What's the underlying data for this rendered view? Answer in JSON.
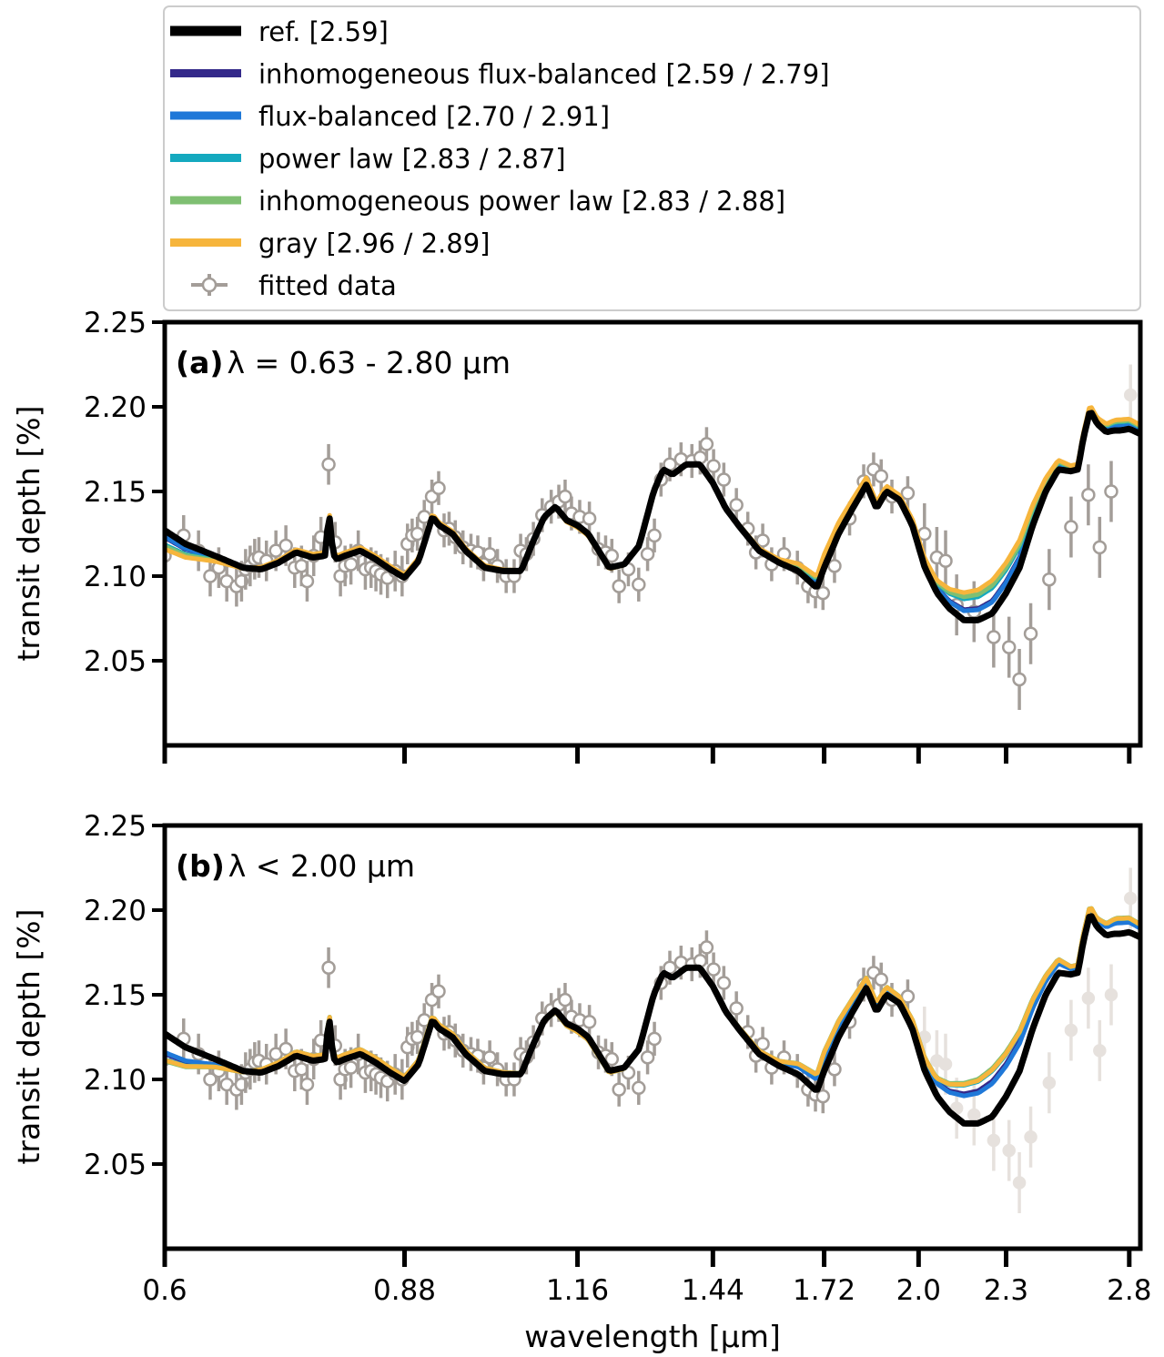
{
  "legend": {
    "entries": [
      {
        "label": "ref. [2.59]",
        "color": "#000000"
      },
      {
        "label": "inhomogeneous flux-balanced [2.59 / 2.79]",
        "color": "#34298a"
      },
      {
        "label": "flux-balanced [2.70 / 2.91]",
        "color": "#1f78d8"
      },
      {
        "label": "power law [2.83 / 2.87]",
        "color": "#14a9bf"
      },
      {
        "label": "inhomogeneous power law [2.83 / 2.88]",
        "color": "#7fbf72"
      },
      {
        "label": "gray [2.96 / 2.89]",
        "color": "#f6b53c"
      },
      {
        "label": "fitted data",
        "color": "#a39d98"
      }
    ]
  },
  "chart_data": [
    {
      "type": "line",
      "panel": "a",
      "annotation_bold": "(a)",
      "annotation": "λ = 0.63 - 2.80 μm",
      "xlabel": "",
      "ylabel": "transit depth [%]",
      "x_scale": "log",
      "xlim": [
        0.6,
        2.85
      ],
      "ylim": [
        2.0,
        2.25
      ],
      "yticks": [
        "2.05",
        "2.10",
        "2.15",
        "2.20",
        "2.25"
      ],
      "xticks": [
        0.6,
        0.88,
        1.16,
        1.44,
        1.72,
        2.0,
        2.3,
        2.8
      ],
      "fit_max_um": 2.8,
      "spread": {
        "inhomogeneous flux-balanced": 0.25,
        "flux-balanced": 0.22,
        "power law": 0.5,
        "inhomogeneous power law": 0.55,
        "gray": 0.65
      }
    },
    {
      "type": "line",
      "panel": "b",
      "annotation_bold": "(b)",
      "annotation": "λ < 2.00 μm",
      "xlabel": "wavelength [μm]",
      "ylabel": "transit depth [%]",
      "x_scale": "log",
      "xlim": [
        0.6,
        2.85
      ],
      "ylim": [
        2.0,
        2.25
      ],
      "yticks": [
        "2.05",
        "2.10",
        "2.15",
        "2.20",
        "2.25"
      ],
      "xticks": [
        0.6,
        0.88,
        1.16,
        1.44,
        1.72,
        2.0,
        2.3,
        2.8
      ],
      "xticklabels": [
        "0.6",
        "0.88",
        "1.16",
        "1.44",
        "1.72",
        "2.0",
        "2.3",
        "2.8"
      ],
      "fit_max_um": 2.0,
      "spread": {
        "inhomogeneous flux-balanced": 0.7,
        "flux-balanced": 0.65,
        "power law": 0.9,
        "inhomogeneous power law": 0.95,
        "gray": 0.92
      }
    }
  ],
  "reference_spectrum": {
    "wavelength_um": [
      0.6,
      0.62,
      0.65,
      0.68,
      0.7,
      0.72,
      0.74,
      0.76,
      0.775,
      0.78,
      0.785,
      0.79,
      0.8,
      0.82,
      0.84,
      0.86,
      0.88,
      0.9,
      0.92,
      0.93,
      0.95,
      0.97,
      1.0,
      1.03,
      1.06,
      1.08,
      1.1,
      1.12,
      1.14,
      1.16,
      1.18,
      1.2,
      1.22,
      1.25,
      1.28,
      1.31,
      1.33,
      1.35,
      1.38,
      1.41,
      1.44,
      1.47,
      1.5,
      1.55,
      1.6,
      1.65,
      1.7,
      1.72,
      1.76,
      1.8,
      1.84,
      1.87,
      1.9,
      1.94,
      1.98,
      2.02,
      2.06,
      2.1,
      2.15,
      2.2,
      2.25,
      2.3,
      2.35,
      2.4,
      2.45,
      2.5,
      2.55,
      2.58,
      2.6,
      2.63,
      2.66,
      2.7,
      2.73,
      2.76,
      2.8,
      2.85
    ],
    "transit_depth_pct": [
      2.127,
      2.119,
      2.112,
      2.105,
      2.104,
      2.108,
      2.114,
      2.111,
      2.112,
      2.138,
      2.113,
      2.11,
      2.112,
      2.115,
      2.11,
      2.104,
      2.099,
      2.109,
      2.135,
      2.13,
      2.125,
      2.115,
      2.105,
      2.103,
      2.103,
      2.12,
      2.135,
      2.141,
      2.133,
      2.13,
      2.125,
      2.115,
      2.105,
      2.107,
      2.118,
      2.15,
      2.163,
      2.16,
      2.166,
      2.166,
      2.155,
      2.14,
      2.13,
      2.115,
      2.108,
      2.103,
      2.093,
      2.105,
      2.125,
      2.14,
      2.154,
      2.14,
      2.15,
      2.145,
      2.13,
      2.105,
      2.09,
      2.081,
      2.074,
      2.074,
      2.078,
      2.09,
      2.105,
      2.13,
      2.15,
      2.163,
      2.162,
      2.163,
      2.18,
      2.198,
      2.19,
      2.185,
      2.186,
      2.186,
      2.187,
      2.184
    ]
  },
  "model_offset_pct": {
    "wavelength_um": [
      0.6,
      0.65,
      0.7,
      0.76,
      0.85,
      1.0,
      1.16,
      1.3,
      1.44,
      1.6,
      1.72,
      1.85,
      1.95,
      2.05,
      2.15,
      2.25,
      2.35,
      2.45,
      2.55,
      2.65,
      2.75,
      2.85
    ],
    "offset_pct": [
      -0.017,
      -0.005,
      0.002,
      0.003,
      0.003,
      0.002,
      -0.002,
      0.0,
      0.0,
      0.003,
      0.012,
      0.006,
      0.004,
      0.01,
      0.025,
      0.03,
      0.025,
      0.012,
      0.005,
      0.005,
      0.01,
      0.008
    ]
  },
  "fitted_data": {
    "wavelength_um": [
      0.6,
      0.6184,
      0.6333,
      0.6452,
      0.6541,
      0.6625,
      0.6729,
      0.6783,
      0.6827,
      0.6877,
      0.6927,
      0.6974,
      0.7058,
      0.7166,
      0.7281,
      0.7384,
      0.7465,
      0.7532,
      0.7612,
      0.77,
      0.7795,
      0.7877,
      0.7944,
      0.8003,
      0.8078,
      0.8173,
      0.8266,
      0.8342,
      0.8407,
      0.8474,
      0.8563,
      0.8669,
      0.8766,
      0.8842,
      0.8908,
      0.8983,
      0.9082,
      0.9193,
      0.9293,
      0.9374,
      0.9449,
      0.9543,
      0.9661,
      0.9785,
      0.9892,
      0.9985,
      1.0083,
      1.0208,
      1.0351,
      1.0484,
      1.0593,
      1.0691,
      1.0811,
      1.0964,
      1.1123,
      1.1259,
      1.1373,
      1.1489,
      1.1641,
      1.1822,
      1.1994,
      1.2133,
      1.2254,
      1.2395,
      1.2582,
      1.2791,
      1.2974,
      1.3116,
      1.3255,
      1.3443,
      1.3686,
      1.3925,
      1.4111,
      1.4256,
      1.4416,
      1.4654,
      1.4951,
      1.5226,
      1.5425,
      1.5593,
      1.5817,
      1.6133,
      1.6481,
      1.6764,
      1.6963,
      1.7168,
      1.7487,
      1.7914,
      1.8322,
      1.8614,
      1.8841,
      1.9166,
      1.9657,
      2.0189,
      2.0592,
      2.0882,
      2.1254,
      2.1853,
      2.2549,
      2.3108,
      2.3493,
      2.3923,
      2.4639,
      2.5516,
      2.6229,
      2.6708,
      2.7204,
      2.8057
    ],
    "transit_depth_pct": [
      2.112,
      2.124,
      2.115,
      2.1,
      2.105,
      2.097,
      2.094,
      2.097,
      2.104,
      2.106,
      2.11,
      2.111,
      2.109,
      2.115,
      2.118,
      2.105,
      2.106,
      2.097,
      2.112,
      2.123,
      2.166,
      2.12,
      2.1,
      2.106,
      2.107,
      2.115,
      2.104,
      2.105,
      2.103,
      2.101,
      2.099,
      2.103,
      2.1,
      2.119,
      2.124,
      2.125,
      2.135,
      2.147,
      2.152,
      2.127,
      2.128,
      2.123,
      2.117,
      2.115,
      2.114,
      2.107,
      2.113,
      2.106,
      2.1,
      2.1,
      2.115,
      2.113,
      2.122,
      2.136,
      2.141,
      2.144,
      2.147,
      2.137,
      2.135,
      2.134,
      2.116,
      2.114,
      2.112,
      2.094,
      2.104,
      2.095,
      2.113,
      2.124,
      2.157,
      2.166,
      2.169,
      2.168,
      2.17,
      2.178,
      2.165,
      2.157,
      2.142,
      2.128,
      2.114,
      2.121,
      2.107,
      2.113,
      2.105,
      2.094,
      2.091,
      2.09,
      2.106,
      2.134,
      2.156,
      2.163,
      2.159,
      2.147,
      2.149,
      2.125,
      2.111,
      2.109,
      2.083,
      2.079,
      2.064,
      2.058,
      2.039,
      2.066,
      2.098,
      2.129,
      2.148,
      2.117,
      2.15,
      2.207
    ],
    "error_pct": [
      0.012,
      0.012,
      0.012,
      0.012,
      0.012,
      0.012,
      0.012,
      0.012,
      0.012,
      0.012,
      0.012,
      0.012,
      0.012,
      0.012,
      0.012,
      0.012,
      0.012,
      0.012,
      0.012,
      0.012,
      0.012,
      0.012,
      0.012,
      0.012,
      0.012,
      0.012,
      0.012,
      0.012,
      0.012,
      0.012,
      0.012,
      0.012,
      0.012,
      0.012,
      0.01,
      0.01,
      0.01,
      0.01,
      0.01,
      0.01,
      0.01,
      0.01,
      0.01,
      0.01,
      0.01,
      0.01,
      0.01,
      0.01,
      0.01,
      0.01,
      0.01,
      0.01,
      0.01,
      0.01,
      0.01,
      0.01,
      0.01,
      0.01,
      0.01,
      0.01,
      0.01,
      0.01,
      0.01,
      0.01,
      0.01,
      0.01,
      0.01,
      0.01,
      0.01,
      0.01,
      0.01,
      0.01,
      0.01,
      0.01,
      0.01,
      0.01,
      0.01,
      0.01,
      0.01,
      0.01,
      0.01,
      0.01,
      0.01,
      0.01,
      0.01,
      0.01,
      0.01,
      0.01,
      0.01,
      0.01,
      0.01,
      0.01,
      0.01,
      0.018,
      0.018,
      0.018,
      0.018,
      0.018,
      0.018,
      0.018,
      0.018,
      0.018,
      0.018,
      0.018,
      0.018,
      0.018,
      0.018,
      0.018
    ]
  },
  "colors": {
    "excluded_data": "#e6e1dd",
    "axes": "#000000"
  }
}
